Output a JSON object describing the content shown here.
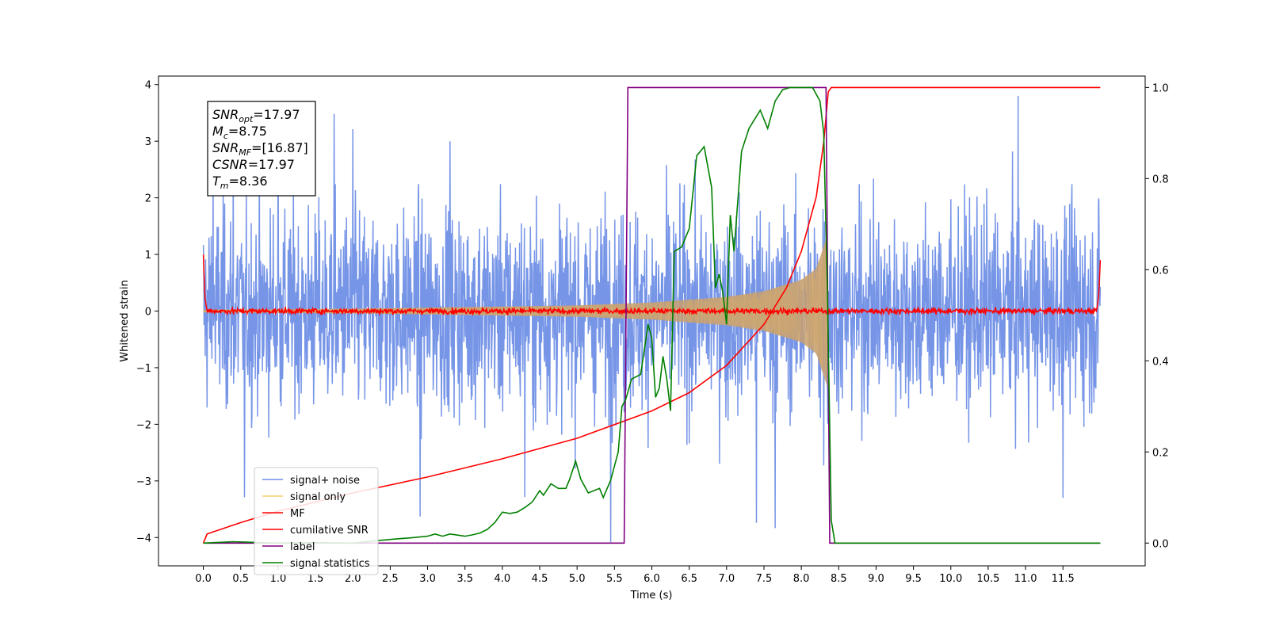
{
  "chart_data": {
    "type": "line",
    "xlabel": "Time (s)",
    "ylabel": "Whitened strain",
    "xlim": [
      -0.6,
      12.6
    ],
    "ylim": [
      -4.5,
      4.15
    ],
    "y2lim": [
      -0.05,
      1.025
    ],
    "x_ticks": [
      "0.0",
      "0.5",
      "1.0",
      "1.5",
      "2.0",
      "2.5",
      "3.0",
      "3.5",
      "4.0",
      "4.5",
      "5.0",
      "5.5",
      "6.0",
      "6.5",
      "7.0",
      "7.5",
      "8.0",
      "8.5",
      "9.0",
      "9.5",
      "10.0",
      "10.5",
      "11.0",
      "11.5"
    ],
    "y_ticks": [
      "4",
      "3",
      "2",
      "1",
      "0",
      "−1",
      "−2",
      "−3",
      "−4"
    ],
    "y2_ticks": [
      "1.0",
      "0.8",
      "0.6",
      "0.4",
      "0.2",
      "0.0"
    ],
    "grid": false,
    "stats": {
      "snr_opt": {
        "label": "SNR",
        "sub": "opt",
        "value": "=17.97"
      },
      "mc": {
        "label": "M",
        "sub": "c",
        "value": "=8.75"
      },
      "snr_mf": {
        "label": "SNR",
        "sub": "MF",
        "value": "=[16.87]"
      },
      "csnr": {
        "label": "CSNR",
        "value": "=17.97"
      },
      "tm": {
        "label": "T",
        "sub": "m",
        "value": "=8.36"
      }
    },
    "legend_position": "lower-left",
    "series": [
      {
        "name": "signal+ noise",
        "axis": "left",
        "color": "#6f8fe6",
        "style": "noise-band",
        "x_range": [
          0.0,
          12.0
        ],
        "typical_amplitude": 2.0,
        "peak_values": [
          [
            0.13,
            2.3
          ],
          [
            0.4,
            2.8
          ],
          [
            0.55,
            -3.3
          ],
          [
            1.0,
            3.2
          ],
          [
            1.75,
            3.5
          ],
          [
            2.0,
            3.2
          ],
          [
            2.9,
            -3.6
          ],
          [
            3.3,
            3.0
          ],
          [
            4.3,
            -3.3
          ],
          [
            5.45,
            -4.1
          ],
          [
            7.4,
            -3.6
          ],
          [
            7.65,
            -3.9
          ],
          [
            8.3,
            -3.3
          ],
          [
            10.9,
            3.8
          ],
          [
            11.5,
            -3.3
          ]
        ]
      },
      {
        "name": "signal only",
        "axis": "left",
        "color": "#f6cf6c",
        "style": "chirp-envelope",
        "envelope": [
          [
            0.0,
            0.02
          ],
          [
            2.0,
            0.04
          ],
          [
            4.0,
            0.08
          ],
          [
            5.0,
            0.1
          ],
          [
            6.0,
            0.15
          ],
          [
            7.0,
            0.25
          ],
          [
            7.5,
            0.35
          ],
          [
            8.0,
            0.55
          ],
          [
            8.2,
            0.75
          ],
          [
            8.35,
            1.35
          ],
          [
            8.36,
            0.0
          ]
        ]
      },
      {
        "name": "MF",
        "axis": "left",
        "color": "#ff0000",
        "style": "noise-band",
        "x_range": [
          0.0,
          12.0
        ],
        "typical_amplitude": 0.08,
        "edge_values": [
          [
            0.0,
            1.0
          ],
          [
            0.02,
            0.25
          ],
          [
            0.05,
            0.0
          ],
          [
            11.95,
            0.0
          ],
          [
            11.98,
            0.3
          ],
          [
            12.0,
            0.9
          ]
        ]
      },
      {
        "name": "cumilative SNR",
        "axis": "right",
        "color": "#ff0000",
        "values": [
          [
            0.0,
            0.0
          ],
          [
            0.05,
            0.02
          ],
          [
            0.5,
            0.045
          ],
          [
            1.0,
            0.07
          ],
          [
            2.0,
            0.11
          ],
          [
            3.0,
            0.145
          ],
          [
            4.0,
            0.185
          ],
          [
            5.0,
            0.23
          ],
          [
            6.0,
            0.29
          ],
          [
            6.5,
            0.33
          ],
          [
            7.0,
            0.39
          ],
          [
            7.5,
            0.48
          ],
          [
            7.8,
            0.56
          ],
          [
            8.0,
            0.64
          ],
          [
            8.2,
            0.76
          ],
          [
            8.3,
            0.88
          ],
          [
            8.36,
            0.99
          ],
          [
            8.4,
            1.0
          ],
          [
            12.0,
            1.0
          ]
        ]
      },
      {
        "name": "label",
        "axis": "right",
        "color": "#800080",
        "values": [
          [
            0.0,
            0.0
          ],
          [
            5.63,
            0.0
          ],
          [
            5.68,
            1.0
          ],
          [
            8.33,
            1.0
          ],
          [
            8.38,
            0.0
          ],
          [
            12.0,
            0.0
          ]
        ]
      },
      {
        "name": "signal statistics",
        "axis": "right",
        "color": "#008000",
        "values": [
          [
            0.0,
            0.0
          ],
          [
            0.4,
            0.003
          ],
          [
            1.0,
            0.0
          ],
          [
            1.5,
            0.001
          ],
          [
            2.0,
            0.0
          ],
          [
            2.3,
            0.005
          ],
          [
            2.5,
            0.008
          ],
          [
            2.8,
            0.012
          ],
          [
            3.0,
            0.015
          ],
          [
            3.1,
            0.02
          ],
          [
            3.2,
            0.015
          ],
          [
            3.3,
            0.02
          ],
          [
            3.5,
            0.015
          ],
          [
            3.6,
            0.018
          ],
          [
            3.7,
            0.022
          ],
          [
            3.8,
            0.03
          ],
          [
            3.9,
            0.045
          ],
          [
            4.0,
            0.068
          ],
          [
            4.1,
            0.065
          ],
          [
            4.2,
            0.068
          ],
          [
            4.3,
            0.078
          ],
          [
            4.4,
            0.09
          ],
          [
            4.5,
            0.115
          ],
          [
            4.55,
            0.105
          ],
          [
            4.65,
            0.13
          ],
          [
            4.75,
            0.12
          ],
          [
            4.85,
            0.12
          ],
          [
            4.9,
            0.14
          ],
          [
            4.98,
            0.18
          ],
          [
            5.05,
            0.14
          ],
          [
            5.15,
            0.11
          ],
          [
            5.3,
            0.12
          ],
          [
            5.35,
            0.1
          ],
          [
            5.45,
            0.138
          ],
          [
            5.55,
            0.2
          ],
          [
            5.6,
            0.3
          ],
          [
            5.65,
            0.315
          ],
          [
            5.73,
            0.36
          ],
          [
            5.85,
            0.37
          ],
          [
            5.95,
            0.48
          ],
          [
            6.0,
            0.45
          ],
          [
            6.05,
            0.32
          ],
          [
            6.1,
            0.34
          ],
          [
            6.15,
            0.41
          ],
          [
            6.2,
            0.36
          ],
          [
            6.25,
            0.29
          ],
          [
            6.3,
            0.64
          ],
          [
            6.4,
            0.65
          ],
          [
            6.5,
            0.69
          ],
          [
            6.6,
            0.85
          ],
          [
            6.7,
            0.87
          ],
          [
            6.8,
            0.78
          ],
          [
            6.85,
            0.56
          ],
          [
            6.9,
            0.59
          ],
          [
            6.95,
            0.55
          ],
          [
            7.0,
            0.48
          ],
          [
            7.05,
            0.72
          ],
          [
            7.1,
            0.64
          ],
          [
            7.2,
            0.86
          ],
          [
            7.3,
            0.91
          ],
          [
            7.45,
            0.95
          ],
          [
            7.55,
            0.91
          ],
          [
            7.65,
            0.97
          ],
          [
            7.75,
            0.995
          ],
          [
            7.85,
            1.0
          ],
          [
            8.0,
            1.0
          ],
          [
            8.15,
            1.0
          ],
          [
            8.25,
            0.97
          ],
          [
            8.3,
            0.9
          ],
          [
            8.35,
            0.55
          ],
          [
            8.4,
            0.05
          ],
          [
            8.45,
            0.0
          ],
          [
            12.0,
            0.0
          ]
        ]
      }
    ]
  }
}
